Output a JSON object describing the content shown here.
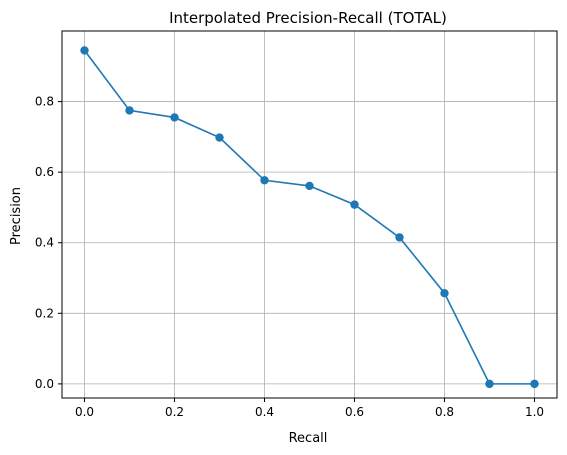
{
  "chart_data": {
    "type": "line",
    "title": "Interpolated Precision-Recall (TOTAL)",
    "xlabel": "Recall",
    "ylabel": "Precision",
    "xlim": [
      -0.05,
      1.05
    ],
    "ylim": [
      -0.04,
      1.0
    ],
    "xticks": [
      0.0,
      0.2,
      0.4,
      0.6,
      0.8,
      1.0
    ],
    "xtick_labels": [
      "0.0",
      "0.2",
      "0.4",
      "0.6",
      "0.8",
      "1.0"
    ],
    "yticks": [
      0.0,
      0.2,
      0.4,
      0.6,
      0.8
    ],
    "ytick_labels": [
      "0.0",
      "0.2",
      "0.4",
      "0.6",
      "0.8"
    ],
    "grid": true,
    "series": [
      {
        "color": "#1f77b4",
        "marker": "circle",
        "x": [
          0.0,
          0.1,
          0.2,
          0.3,
          0.4,
          0.5,
          0.6,
          0.7,
          0.8,
          0.9,
          1.0
        ],
        "y": [
          0.945,
          0.775,
          0.755,
          0.698,
          0.577,
          0.561,
          0.508,
          0.415,
          0.257,
          0.0,
          0.0
        ]
      }
    ]
  }
}
